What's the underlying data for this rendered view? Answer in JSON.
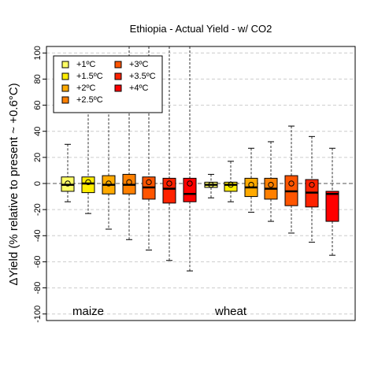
{
  "chart_data": {
    "type": "box",
    "title": "Ethiopia - Actual Yield - w/ CO2",
    "ylabel": "ΔYield (% relative to present ~ +0.6°C)",
    "xlabel": "",
    "ylim": [
      -105,
      105
    ],
    "yticks": [
      -100,
      -80,
      -60,
      -40,
      -20,
      0,
      20,
      40,
      60,
      80,
      100
    ],
    "grid": true,
    "legend_position": "top-left",
    "legend": [
      {
        "label": "+1ºC",
        "color": "#ffff66"
      },
      {
        "label": "+1.5ºC",
        "color": "#ffee00"
      },
      {
        "label": "+2ºC",
        "color": "#ffaa00"
      },
      {
        "label": "+2.5ºC",
        "color": "#ff8000"
      },
      {
        "label": "+3ºC",
        "color": "#ff5500"
      },
      {
        "label": "+3.5ºC",
        "color": "#ff2200"
      },
      {
        "label": "+4ºC",
        "color": "#ff0000"
      }
    ],
    "groups": [
      {
        "label": "maize",
        "boxes": [
          {
            "warming": "+1ºC",
            "whisker_low": -14,
            "q1": -6,
            "median": -1,
            "q3": 5,
            "whisker_high": 30,
            "mean": 0
          },
          {
            "warming": "+1.5ºC",
            "whisker_low": -23,
            "q1": -7,
            "median": 0,
            "q3": 5,
            "whisker_high": 65,
            "mean": 1
          },
          {
            "warming": "+2ºC",
            "whisker_low": -35,
            "q1": -8,
            "median": -1,
            "q3": 6,
            "whisker_high": 65,
            "mean": 0
          },
          {
            "warming": "+2.5ºC",
            "whisker_low": -43,
            "q1": -8,
            "median": -1,
            "q3": 7,
            "whisker_high": 105,
            "mean": 1
          },
          {
            "warming": "+3ºC",
            "whisker_low": -51,
            "q1": -12,
            "median": -3,
            "q3": 5,
            "whisker_high": 105,
            "mean": 1
          },
          {
            "warming": "+3.5ºC",
            "whisker_low": -59,
            "q1": -15,
            "median": -4,
            "q3": 4,
            "whisker_high": 105,
            "mean": 0
          },
          {
            "warming": "+4ºC",
            "whisker_low": -67,
            "q1": -14,
            "median": -8,
            "q3": 4,
            "whisker_high": 105,
            "mean": 0
          }
        ]
      },
      {
        "label": "wheat",
        "boxes": [
          {
            "warming": "+1ºC",
            "whisker_low": -11,
            "q1": -3,
            "median": -1,
            "q3": 1,
            "whisker_high": 7,
            "mean": -1
          },
          {
            "warming": "+1.5ºC",
            "whisker_low": -14,
            "q1": -6,
            "median": -1,
            "q3": 1,
            "whisker_high": 17,
            "mean": -1
          },
          {
            "warming": "+2ºC",
            "whisker_low": -22,
            "q1": -10,
            "median": -3,
            "q3": 4,
            "whisker_high": 27,
            "mean": -1
          },
          {
            "warming": "+2.5ºC",
            "whisker_low": -29,
            "q1": -12,
            "median": -4,
            "q3": 4,
            "whisker_high": 32,
            "mean": -1
          },
          {
            "warming": "+3ºC",
            "whisker_low": -38,
            "q1": -17,
            "median": -6,
            "q3": 6,
            "whisker_high": 44,
            "mean": 0
          },
          {
            "warming": "+3.5ºC",
            "whisker_low": -45,
            "q1": -18,
            "median": -7,
            "q3": 3,
            "whisker_high": 36,
            "mean": -1
          },
          {
            "warming": "+4ºC",
            "whisker_low": -55,
            "q1": -29,
            "median": -8,
            "q3": -6,
            "whisker_high": 27,
            "mean": null
          }
        ]
      }
    ]
  }
}
